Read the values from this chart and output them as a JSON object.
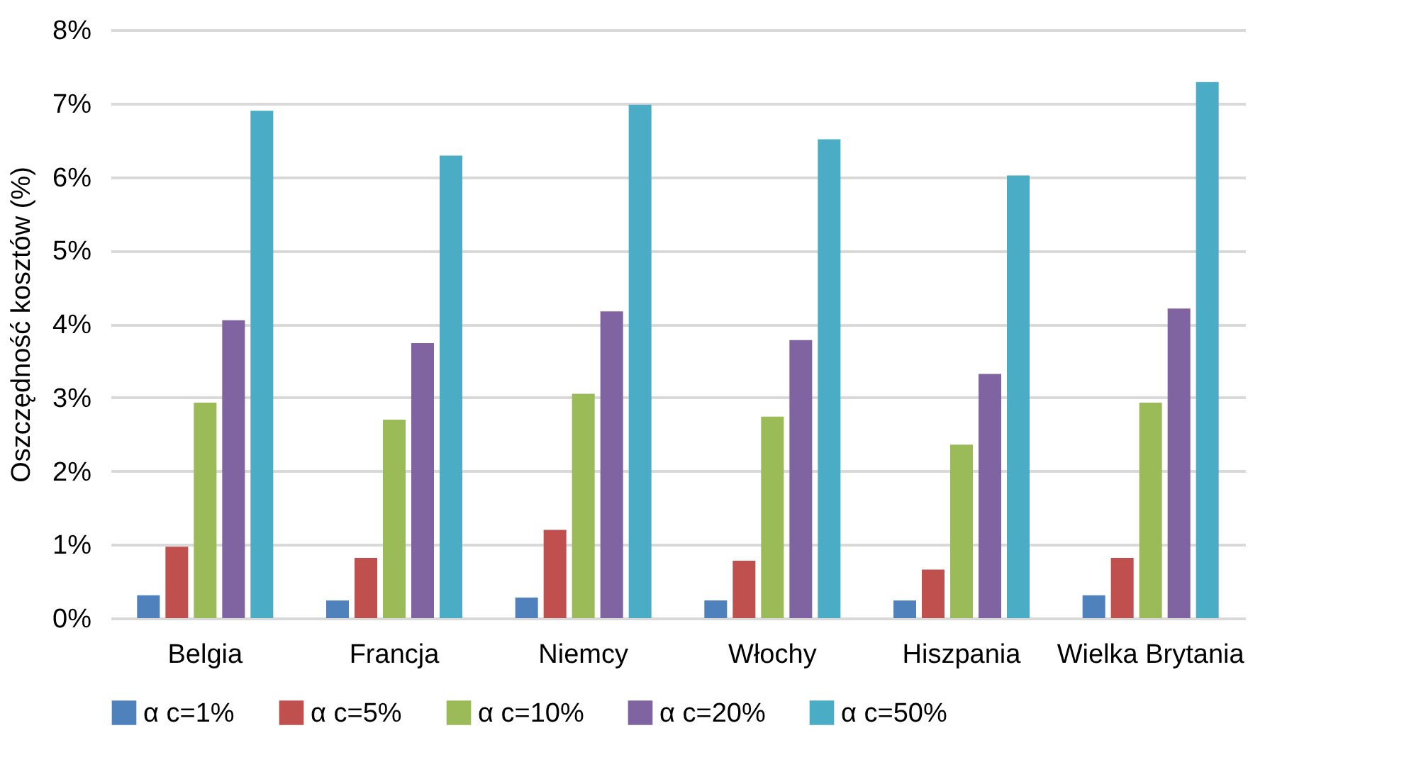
{
  "chart_data": {
    "type": "bar",
    "ylabel": "Oszczędność kosztów (%)",
    "categories": [
      "Belgia",
      "Francja",
      "Niemcy",
      "Włochy",
      "Hiszpania",
      "Wielka Brytania"
    ],
    "series": [
      {
        "name": "α c=1%",
        "color": "#4f81bd",
        "values": [
          0.31,
          0.24,
          0.28,
          0.24,
          0.24,
          0.31
        ]
      },
      {
        "name": "α c=5%",
        "color": "#c0504d",
        "values": [
          0.97,
          0.82,
          1.2,
          0.78,
          0.66,
          0.82
        ]
      },
      {
        "name": "α c=10%",
        "color": "#9bbb59",
        "values": [
          2.93,
          2.7,
          3.05,
          2.74,
          2.36,
          2.93
        ]
      },
      {
        "name": "α c=20%",
        "color": "#8064a2",
        "values": [
          4.05,
          3.74,
          4.17,
          3.78,
          3.32,
          4.21
        ]
      },
      {
        "name": "α c=50%",
        "color": "#4bacc6",
        "values": [
          6.9,
          6.29,
          6.98,
          6.51,
          6.02,
          7.29
        ]
      }
    ],
    "ylim": [
      0,
      8
    ],
    "yticks": [
      {
        "value": 0,
        "label": "0%"
      },
      {
        "value": 1,
        "label": "1%"
      },
      {
        "value": 2,
        "label": "2%"
      },
      {
        "value": 3,
        "label": "3%"
      },
      {
        "value": 4,
        "label": "4%"
      },
      {
        "value": 5,
        "label": "5%"
      },
      {
        "value": 6,
        "label": "6%"
      },
      {
        "value": 7,
        "label": "7%"
      },
      {
        "value": 8,
        "label": "8%"
      }
    ],
    "grid": "y",
    "legend": "bottom"
  }
}
